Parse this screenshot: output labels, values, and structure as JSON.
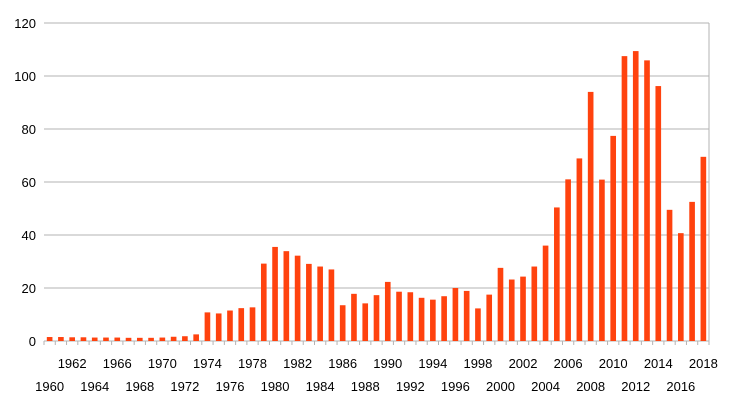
{
  "chart_data": {
    "type": "bar",
    "title": "",
    "xlabel": "",
    "ylabel": "",
    "ylim": [
      0,
      120
    ],
    "yticks": [
      0,
      20,
      40,
      60,
      80,
      100,
      120
    ],
    "grid": true,
    "legend": "none",
    "bar_color": "#ff420e",
    "categories": [
      "1960",
      "1961",
      "1962",
      "1963",
      "1964",
      "1965",
      "1966",
      "1967",
      "1968",
      "1969",
      "1970",
      "1971",
      "1972",
      "1973",
      "1974",
      "1975",
      "1976",
      "1977",
      "1978",
      "1979",
      "1980",
      "1981",
      "1982",
      "1983",
      "1984",
      "1985",
      "1986",
      "1987",
      "1988",
      "1989",
      "1990",
      "1991",
      "1992",
      "1993",
      "1994",
      "1995",
      "1996",
      "1997",
      "1998",
      "1999",
      "2000",
      "2001",
      "2002",
      "2003",
      "2004",
      "2005",
      "2006",
      "2007",
      "2008",
      "2009",
      "2010",
      "2011",
      "2012",
      "2013",
      "2014",
      "2015",
      "2016",
      "2017",
      "2018"
    ],
    "values": [
      1.5,
      1.5,
      1.4,
      1.4,
      1.3,
      1.3,
      1.3,
      1.2,
      1.2,
      1.2,
      1.3,
      1.6,
      1.8,
      2.5,
      10.8,
      10.4,
      11.5,
      12.4,
      12.7,
      29.2,
      35.5,
      33.9,
      32.2,
      29.1,
      28.1,
      27.0,
      13.5,
      17.8,
      14.2,
      17.3,
      22.3,
      18.6,
      18.4,
      16.3,
      15.6,
      16.9,
      20.0,
      18.9,
      12.3,
      17.5,
      27.6,
      23.2,
      24.3,
      28.1,
      36.0,
      50.4,
      61.0,
      68.9,
      94.0,
      60.9,
      77.4,
      107.5,
      109.4,
      105.9,
      96.2,
      49.5,
      40.7,
      52.5,
      69.5
    ],
    "xtick_labels_row1": [
      "1962",
      "1966",
      "1970",
      "1974",
      "1978",
      "1982",
      "1986",
      "1990",
      "1994",
      "1998",
      "2002",
      "2006",
      "2010",
      "2014",
      "2018"
    ],
    "xtick_labels_row2": [
      "1960",
      "1964",
      "1968",
      "1972",
      "1976",
      "1980",
      "1984",
      "1988",
      "1992",
      "1996",
      "2000",
      "2004",
      "2008",
      "2012",
      "2016"
    ]
  }
}
